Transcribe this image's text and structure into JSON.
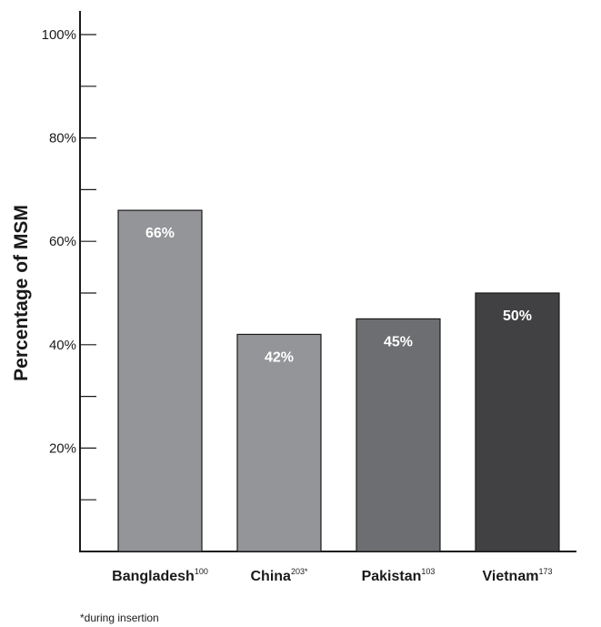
{
  "chart_data": {
    "type": "bar",
    "ylabel": "Percentage of MSM",
    "ylim": [
      0,
      100
    ],
    "ytick_labels": [
      {
        "value": 20,
        "label": "20%"
      },
      {
        "value": 40,
        "label": "40%"
      },
      {
        "value": 60,
        "label": "60%"
      },
      {
        "value": 80,
        "label": "80%"
      },
      {
        "value": 100,
        "label": "100%"
      }
    ],
    "minor_ticks": [
      10,
      30,
      50,
      70,
      90
    ],
    "bars": [
      {
        "category": "Bangladesh",
        "superscript": "100",
        "value": 66,
        "label": "66%",
        "color": "#939598"
      },
      {
        "category": "China",
        "superscript": "203*",
        "value": 42,
        "label": "42%",
        "color": "#939598"
      },
      {
        "category": "Pakistan",
        "superscript": "103",
        "value": 45,
        "label": "45%",
        "color": "#6d6e71"
      },
      {
        "category": "Vietnam",
        "superscript": "173",
        "value": 50,
        "label": "50%",
        "color": "#414042"
      }
    ],
    "footnote": "*during insertion"
  }
}
